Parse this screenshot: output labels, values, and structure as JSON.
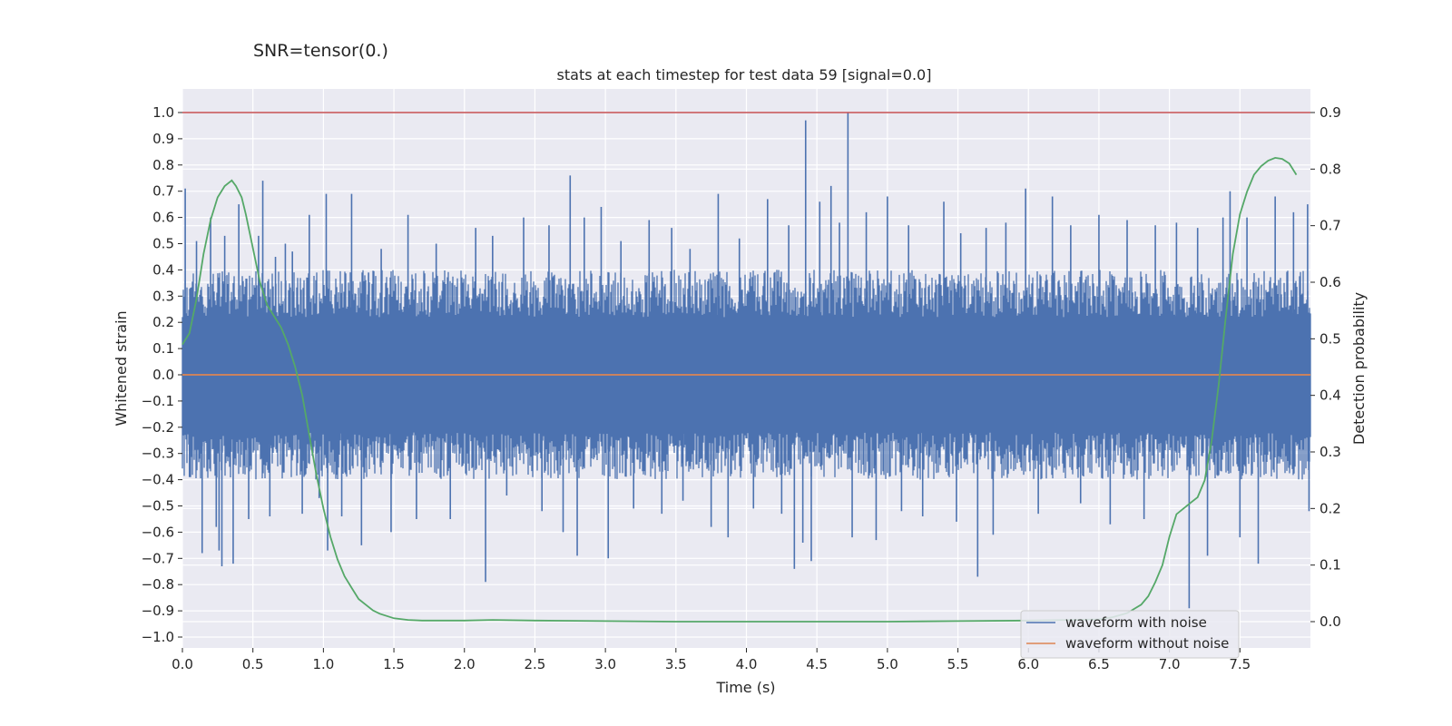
{
  "figure": {
    "suptitle": "SNR=tensor(0.)"
  },
  "chart_data": {
    "type": "line",
    "title": "stats at each timestep for test data 59 [signal=0.0]",
    "xlabel": "Time (s)",
    "ylabel": "Whitened strain",
    "y2label": "Detection probability",
    "xlim": [
      0.0,
      8.0
    ],
    "ylim": [
      -1.0,
      1.0
    ],
    "y2lim": [
      0.0,
      0.9
    ],
    "x_ticks": [
      0.0,
      0.5,
      1.0,
      1.5,
      2.0,
      2.5,
      3.0,
      3.5,
      4.0,
      4.5,
      5.0,
      5.5,
      6.0,
      6.5,
      7.0,
      7.5
    ],
    "x_tick_labels": [
      "0.0",
      "0.5",
      "1.0",
      "1.5",
      "2.0",
      "2.5",
      "3.0",
      "3.5",
      "4.0",
      "4.5",
      "5.0",
      "5.5",
      "6.0",
      "6.5",
      "7.0",
      "7.5"
    ],
    "y_ticks": [
      1.0,
      0.9,
      0.8,
      0.7,
      0.6,
      0.5,
      0.4,
      0.3,
      0.2,
      0.1,
      0.0,
      -0.1,
      -0.2,
      -0.3,
      -0.4,
      -0.5,
      -0.6,
      -0.7,
      -0.8,
      -0.9,
      -1.0
    ],
    "y_tick_labels": [
      "1.0",
      "0.9",
      "0.8",
      "0.7",
      "0.6",
      "0.5",
      "0.4",
      "0.3",
      "0.2",
      "0.1",
      "0.0",
      "−0.1",
      "−0.2",
      "−0.3",
      "−0.4",
      "−0.5",
      "−0.6",
      "−0.7",
      "−0.8",
      "−0.9",
      "−1.0"
    ],
    "y2_ticks": [
      0.9,
      0.8,
      0.7,
      0.6,
      0.5,
      0.4,
      0.3,
      0.2,
      0.1,
      0.0
    ],
    "y2_tick_labels": [
      "0.9",
      "0.8",
      "0.7",
      "0.6",
      "0.5",
      "0.4",
      "0.3",
      "0.2",
      "0.1",
      "0.0"
    ],
    "grid": true,
    "legend_position": "lower-right",
    "colors": {
      "background": "#eaeaf2",
      "grid": "#ffffff",
      "noisy": "#4c72b0",
      "clean": "#dd8452",
      "probability": "#55a868",
      "threshold": "#c44e52"
    },
    "series": [
      {
        "name": "waveform with noise",
        "axis": "left",
        "band": {
          "typical_max": 0.4,
          "typical_min": -0.4
        },
        "spikes": [
          [
            0.02,
            0.71
          ],
          [
            0.05,
            -0.39
          ],
          [
            0.1,
            0.51
          ],
          [
            0.14,
            -0.68
          ],
          [
            0.2,
            0.6
          ],
          [
            0.24,
            -0.58
          ],
          [
            0.26,
            -0.67
          ],
          [
            0.28,
            -0.73
          ],
          [
            0.3,
            0.53
          ],
          [
            0.36,
            -0.72
          ],
          [
            0.4,
            0.65
          ],
          [
            0.47,
            -0.55
          ],
          [
            0.54,
            0.53
          ],
          [
            0.57,
            0.74
          ],
          [
            0.62,
            -0.54
          ],
          [
            0.66,
            0.45
          ],
          [
            0.73,
            0.5
          ],
          [
            0.78,
            0.47
          ],
          [
            0.85,
            -0.53
          ],
          [
            0.9,
            0.61
          ],
          [
            0.97,
            -0.47
          ],
          [
            1.02,
            0.69
          ],
          [
            1.03,
            -0.67
          ],
          [
            1.13,
            -0.54
          ],
          [
            1.2,
            0.69
          ],
          [
            1.27,
            -0.65
          ],
          [
            1.32,
            0.39
          ],
          [
            1.41,
            0.48
          ],
          [
            1.48,
            -0.6
          ],
          [
            1.6,
            0.61
          ],
          [
            1.66,
            -0.55
          ],
          [
            1.8,
            0.5
          ],
          [
            1.9,
            -0.55
          ],
          [
            2.08,
            0.56
          ],
          [
            2.15,
            -0.79
          ],
          [
            2.2,
            0.53
          ],
          [
            2.3,
            -0.46
          ],
          [
            2.42,
            0.6
          ],
          [
            2.55,
            -0.52
          ],
          [
            2.6,
            0.57
          ],
          [
            2.7,
            -0.6
          ],
          [
            2.75,
            0.76
          ],
          [
            2.8,
            -0.69
          ],
          [
            2.85,
            0.6
          ],
          [
            2.97,
            0.64
          ],
          [
            3.02,
            -0.7
          ],
          [
            3.11,
            0.51
          ],
          [
            3.2,
            -0.51
          ],
          [
            3.31,
            0.59
          ],
          [
            3.4,
            -0.53
          ],
          [
            3.47,
            0.56
          ],
          [
            3.55,
            -0.48
          ],
          [
            3.6,
            0.48
          ],
          [
            3.75,
            -0.58
          ],
          [
            3.8,
            0.69
          ],
          [
            3.87,
            -0.62
          ],
          [
            3.95,
            0.52
          ],
          [
            4.05,
            -0.51
          ],
          [
            4.15,
            0.67
          ],
          [
            4.25,
            -0.53
          ],
          [
            4.3,
            0.57
          ],
          [
            4.34,
            -0.74
          ],
          [
            4.4,
            -0.64
          ],
          [
            4.42,
            0.97
          ],
          [
            4.46,
            -0.71
          ],
          [
            4.52,
            0.66
          ],
          [
            4.6,
            0.72
          ],
          [
            4.66,
            0.58
          ],
          [
            4.72,
            1.0
          ],
          [
            4.75,
            -0.62
          ],
          [
            4.85,
            0.62
          ],
          [
            4.92,
            -0.63
          ],
          [
            5.0,
            0.68
          ],
          [
            5.1,
            -0.52
          ],
          [
            5.15,
            0.57
          ],
          [
            5.25,
            -0.54
          ],
          [
            5.4,
            0.66
          ],
          [
            5.49,
            -0.56
          ],
          [
            5.52,
            0.54
          ],
          [
            5.64,
            -0.77
          ],
          [
            5.7,
            0.56
          ],
          [
            5.75,
            -0.61
          ],
          [
            5.84,
            0.58
          ],
          [
            5.98,
            0.71
          ],
          [
            6.07,
            -0.53
          ],
          [
            6.17,
            0.68
          ],
          [
            6.3,
            0.57
          ],
          [
            6.37,
            -0.49
          ],
          [
            6.5,
            0.61
          ],
          [
            6.58,
            -0.57
          ],
          [
            6.7,
            0.59
          ],
          [
            6.82,
            -0.55
          ],
          [
            6.9,
            0.57
          ],
          [
            7.05,
            0.58
          ],
          [
            7.14,
            -0.89
          ],
          [
            7.2,
            0.56
          ],
          [
            7.27,
            -0.69
          ],
          [
            7.38,
            0.6
          ],
          [
            7.43,
            0.7
          ],
          [
            7.5,
            -0.62
          ],
          [
            7.55,
            0.6
          ],
          [
            7.63,
            -0.72
          ],
          [
            7.75,
            0.68
          ],
          [
            7.88,
            0.62
          ],
          [
            7.98,
            0.65
          ],
          [
            7.99,
            -0.52
          ]
        ]
      },
      {
        "name": "waveform without noise",
        "axis": "left",
        "x": [
          0.0,
          8.0
        ],
        "y": [
          0.0,
          0.0
        ]
      },
      {
        "axis": "right",
        "x": [
          0.0,
          0.05,
          0.1,
          0.15,
          0.2,
          0.25,
          0.3,
          0.35,
          0.38,
          0.42,
          0.45,
          0.5,
          0.55,
          0.6,
          0.65,
          0.7,
          0.75,
          0.8,
          0.85,
          0.9,
          0.95,
          1.0,
          1.05,
          1.1,
          1.15,
          1.2,
          1.25,
          1.3,
          1.35,
          1.4,
          1.45,
          1.5,
          1.6,
          1.7,
          1.8,
          2.0,
          2.2,
          2.5,
          3.0,
          3.5,
          4.0,
          4.5,
          5.0,
          5.5,
          6.0,
          6.3,
          6.5,
          6.6,
          6.7,
          6.8,
          6.85,
          6.9,
          6.95,
          7.0,
          7.05,
          7.1,
          7.15,
          7.2,
          7.25,
          7.3,
          7.35,
          7.4,
          7.45,
          7.5,
          7.55,
          7.6,
          7.65,
          7.7,
          7.75,
          7.8,
          7.85,
          7.9
        ],
        "y": [
          0.49,
          0.51,
          0.57,
          0.65,
          0.71,
          0.75,
          0.77,
          0.78,
          0.77,
          0.75,
          0.72,
          0.66,
          0.6,
          0.56,
          0.54,
          0.52,
          0.49,
          0.45,
          0.4,
          0.33,
          0.26,
          0.2,
          0.15,
          0.11,
          0.08,
          0.06,
          0.04,
          0.03,
          0.02,
          0.014,
          0.01,
          0.006,
          0.003,
          0.002,
          0.002,
          0.002,
          0.003,
          0.002,
          0.001,
          0.0,
          0.0,
          0.0,
          0.0,
          0.001,
          0.002,
          0.003,
          0.004,
          0.008,
          0.015,
          0.03,
          0.045,
          0.07,
          0.1,
          0.15,
          0.19,
          0.2,
          0.21,
          0.22,
          0.25,
          0.32,
          0.42,
          0.54,
          0.65,
          0.72,
          0.76,
          0.79,
          0.805,
          0.815,
          0.82,
          0.818,
          0.81,
          0.79
        ]
      },
      {
        "axis": "right",
        "x": [
          0.0,
          8.0
        ],
        "y": [
          0.9,
          0.9
        ]
      }
    ]
  }
}
